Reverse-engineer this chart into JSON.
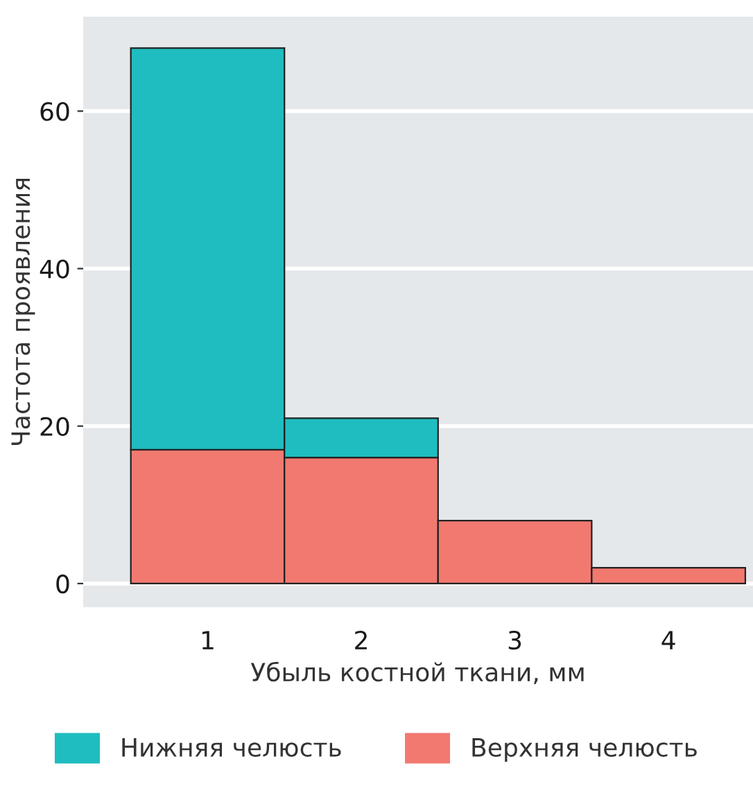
{
  "chart_data": {
    "type": "bar",
    "stacked": true,
    "xlabel": "Убыль костной ткани, мм",
    "ylabel": "Частота проявления",
    "categories": [
      "1",
      "2",
      "3",
      "4"
    ],
    "series": [
      {
        "name": "Верхняя челюсть",
        "color": "#f27970",
        "values": [
          17,
          16,
          8,
          2
        ]
      },
      {
        "name": "Нижняя челюсть",
        "color": "#1fbdbf",
        "values": [
          51,
          5,
          null,
          null
        ]
      }
    ],
    "ylim": [
      -3,
      72
    ],
    "yticks": [
      0,
      20,
      40,
      60
    ],
    "grid": "y",
    "legend": "bottom"
  }
}
